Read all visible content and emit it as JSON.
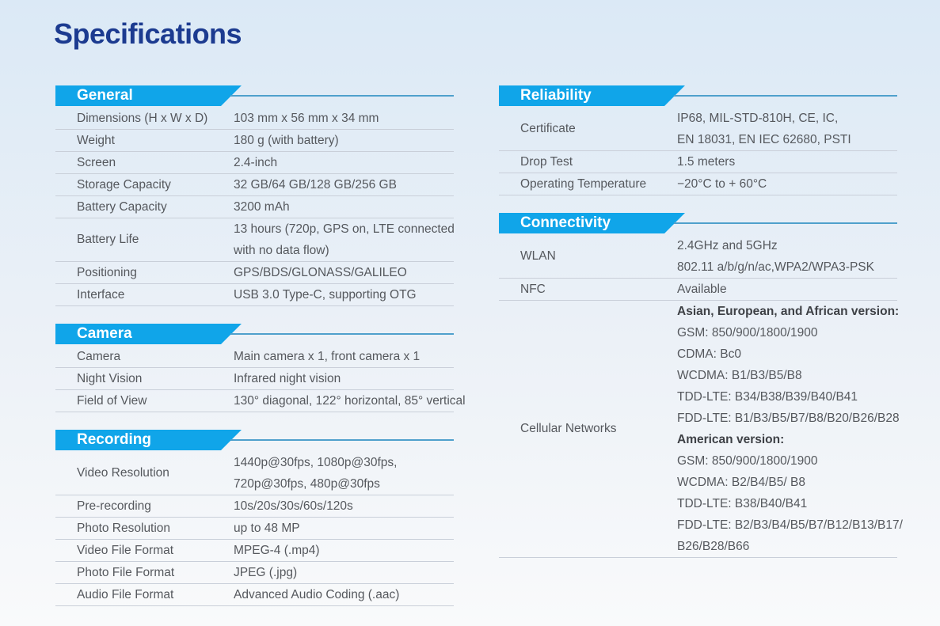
{
  "page": {
    "title": "Specifications"
  },
  "colors": {
    "background_top": "#DBE9F6",
    "background_bottom": "#F9FAFB",
    "banner_blue": "#10A5E9",
    "banner_underline": "#4FA0CC",
    "title_navy": "#1C3B90",
    "body_text": "#55585D",
    "divider": "#C9CFD9"
  },
  "columns": {
    "left": {
      "sections": [
        {
          "title": "General",
          "rows": [
            {
              "label": "Dimensions (H x W x D)",
              "value_lines": [
                "103 mm x 56 mm x 34 mm"
              ]
            },
            {
              "label": "Weight",
              "value_lines": [
                "180 g (with battery)"
              ]
            },
            {
              "label": "Screen",
              "value_lines": [
                "2.4-inch"
              ]
            },
            {
              "label": "Storage Capacity",
              "value_lines": [
                "32 GB/64 GB/128 GB/256 GB"
              ]
            },
            {
              "label": "Battery Capacity",
              "value_lines": [
                "3200 mAh"
              ]
            },
            {
              "label": "Battery Life",
              "value_lines": [
                "13 hours (720p, GPS on, LTE connected",
                "with no data flow)"
              ]
            },
            {
              "label": "Positioning",
              "value_lines": [
                "GPS/BDS/GLONASS/GALILEO"
              ]
            },
            {
              "label": "Interface",
              "value_lines": [
                "USB 3.0 Type-C, supporting OTG"
              ]
            }
          ]
        },
        {
          "title": "Camera",
          "rows": [
            {
              "label": "Camera",
              "value_lines": [
                "Main camera x 1, front camera x 1"
              ]
            },
            {
              "label": "Night Vision",
              "value_lines": [
                "Infrared night vision"
              ]
            },
            {
              "label": "Field of View",
              "value_lines": [
                "130° diagonal, 122° horizontal, 85° vertical"
              ]
            }
          ]
        },
        {
          "title": "Recording",
          "rows": [
            {
              "label": "Video Resolution",
              "value_lines": [
                "1440p@30fps, 1080p@30fps,",
                "720p@30fps, 480p@30fps"
              ]
            },
            {
              "label": "Pre-recording",
              "value_lines": [
                "10s/20s/30s/60s/120s"
              ]
            },
            {
              "label": "Photo Resolution",
              "value_lines": [
                "up to 48 MP"
              ]
            },
            {
              "label": "Video File Format",
              "value_lines": [
                "MPEG-4 (.mp4)"
              ]
            },
            {
              "label": "Photo File Format",
              "value_lines": [
                "JPEG (.jpg)"
              ]
            },
            {
              "label": "Audio File Format",
              "value_lines": [
                "Advanced Audio Coding (.aac)"
              ]
            }
          ]
        }
      ]
    },
    "right": {
      "sections": [
        {
          "title": "Reliability",
          "rows": [
            {
              "label": "Certificate",
              "value_lines": [
                "IP68, MIL-STD-810H, CE, IC,",
                "EN 18031, EN IEC 62680, PSTI"
              ]
            },
            {
              "label": "Drop Test",
              "value_lines": [
                "1.5 meters"
              ]
            },
            {
              "label": "Operating Temperature",
              "value_lines": [
                "−20°C to + 60°C"
              ]
            }
          ]
        },
        {
          "title": "Connectivity",
          "rows": [
            {
              "label": "WLAN",
              "value_lines": [
                "2.4GHz and 5GHz",
                "802.11 a/b/g/n/ac,WPA2/WPA3-PSK"
              ]
            },
            {
              "label": "NFC",
              "value_lines": [
                "Available"
              ]
            },
            {
              "label": "Cellular Networks",
              "value_lines": [
                {
                  "text": "Asian, European, and African version:",
                  "bold": true
                },
                "GSM: 850/900/1800/1900",
                "CDMA: Bc0",
                "WCDMA: B1/B3/B5/B8",
                "TDD-LTE: B34/B38/B39/B40/B41",
                "FDD-LTE: B1/B3/B5/B7/B8/B20/B26/B28",
                {
                  "text": "American version:",
                  "bold": true
                },
                "GSM: 850/900/1800/1900",
                "WCDMA: B2/B4/B5/ B8",
                "TDD-LTE: B38/B40/B41",
                "FDD-LTE: B2/B3/B4/B5/B7/B12/B13/B17/",
                "B26/B28/B66"
              ]
            }
          ]
        }
      ]
    }
  }
}
